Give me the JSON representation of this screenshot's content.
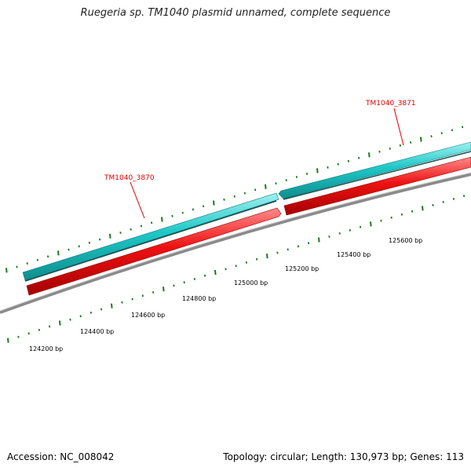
{
  "title": "Ruegeria sp. TM1040 plasmid unnamed, complete sequence",
  "footer": {
    "accession": "Accession: NC_008042",
    "summary": "Topology: circular; Length: 130,973 bp; Genes: 113"
  },
  "genes": [
    {
      "name": "TM1040_3870",
      "strand": "both"
    },
    {
      "name": "TM1040_3871",
      "strand": "both"
    }
  ],
  "bp_ticks": [
    "124200 bp",
    "124400 bp",
    "124600 bp",
    "124800 bp",
    "125000 bp",
    "125200 bp",
    "125400 bp",
    "125600 bp"
  ],
  "colors": {
    "forward_gene": "#1ec8c8",
    "reverse_gene": "#ee1111",
    "backbone": "#8a8a8a",
    "tick": "#1a7a1a",
    "label": "#dd0000"
  }
}
